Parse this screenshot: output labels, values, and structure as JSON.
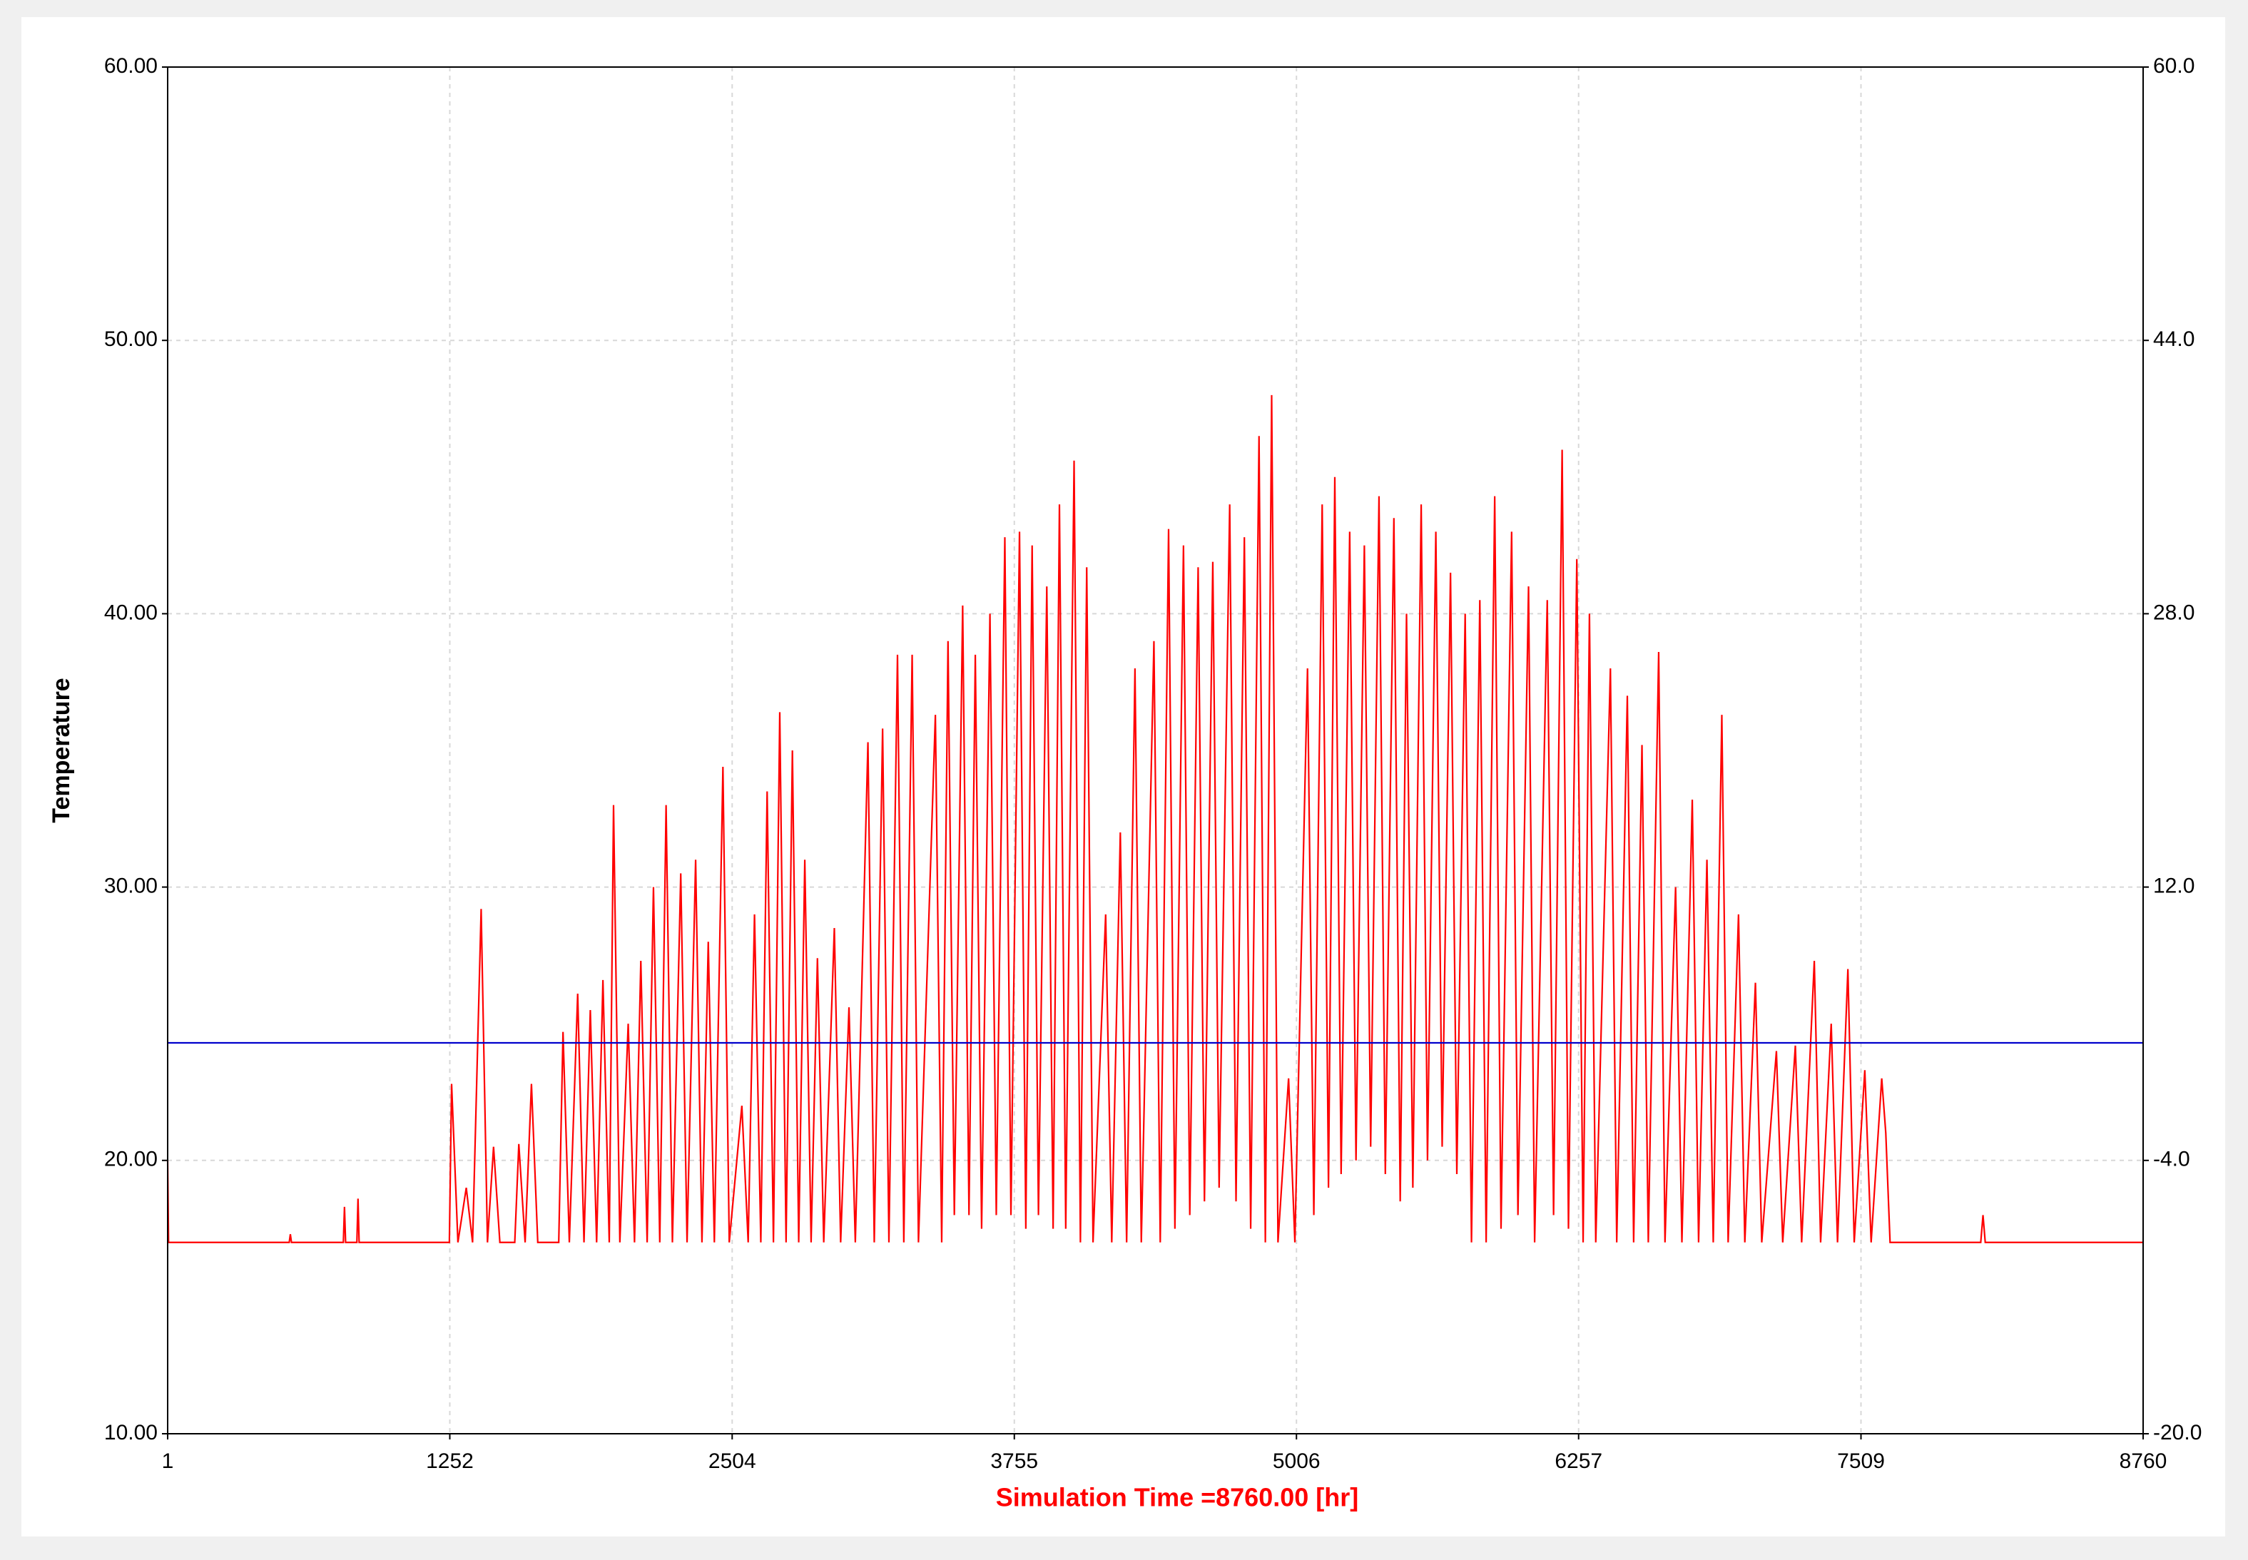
{
  "chart_data": {
    "type": "line",
    "y_label": "Temperature",
    "x_label": "Simulation Time =8760.00 [hr]",
    "x_label_color": "#ff0000",
    "grid": true,
    "xlim": [
      1,
      8760
    ],
    "xticks": [
      1,
      1252,
      2504,
      3755,
      5006,
      6257,
      7509,
      8760
    ],
    "ylim": [
      10,
      60
    ],
    "yticks": [
      {
        "value": 10,
        "label": "10.00"
      },
      {
        "value": 20,
        "label": "20.00"
      },
      {
        "value": 30,
        "label": "30.00"
      },
      {
        "value": 40,
        "label": "40.00"
      },
      {
        "value": 50,
        "label": "50.00"
      },
      {
        "value": 60,
        "label": "60.00"
      }
    ],
    "y2lim": [
      -20,
      60
    ],
    "y2ticks": [
      {
        "value": -20,
        "label": "-20.0"
      },
      {
        "value": -4,
        "label": "-4.0"
      },
      {
        "value": 12,
        "label": "12.0"
      },
      {
        "value": 28,
        "label": "28.0"
      },
      {
        "value": 44,
        "label": "44.0"
      },
      {
        "value": 60,
        "label": "60.0"
      }
    ],
    "series": [
      {
        "color": "#ff0000",
        "x": [
          1,
          5,
          540,
          545,
          550,
          780,
          785,
          790,
          840,
          845,
          850,
          1250,
          1260,
          1288,
          1325,
          1353,
          1391,
          1419,
          1446,
          1474,
          1540,
          1558,
          1586,
          1614,
          1642,
          1735,
          1754,
          1782,
          1819,
          1847,
          1875,
          1903,
          1931,
          1959,
          1978,
          2006,
          2043,
          2071,
          2099,
          2127,
          2155,
          2183,
          2211,
          2239,
          2276,
          2304,
          2342,
          2370,
          2398,
          2425,
          2463,
          2491,
          2547,
          2575,
          2603,
          2631,
          2659,
          2687,
          2715,
          2743,
          2771,
          2799,
          2826,
          2854,
          2882,
          2910,
          2957,
          2985,
          3022,
          3050,
          3106,
          3134,
          3171,
          3199,
          3237,
          3265,
          3302,
          3330,
          3405,
          3433,
          3461,
          3489,
          3526,
          3554,
          3582,
          3610,
          3647,
          3675,
          3713,
          3740,
          3778,
          3806,
          3834,
          3862,
          3899,
          3927,
          3955,
          3983,
          4020,
          4048,
          4076,
          4104,
          4160,
          4187,
          4225,
          4253,
          4290,
          4318,
          4374,
          4402,
          4439,
          4467,
          4505,
          4533,
          4570,
          4598,
          4635,
          4663,
          4710,
          4738,
          4775,
          4803,
          4840,
          4868,
          4896,
          4924,
          4971,
          4999,
          5055,
          5083,
          5120,
          5148,
          5176,
          5204,
          5242,
          5270,
          5307,
          5335,
          5372,
          5400,
          5438,
          5466,
          5494,
          5522,
          5559,
          5587,
          5624,
          5652,
          5689,
          5717,
          5754,
          5782,
          5819,
          5847,
          5885,
          5913,
          5960,
          5988,
          6035,
          6062,
          6118,
          6146,
          6184,
          6212,
          6249,
          6277,
          6305,
          6333,
          6398,
          6426,
          6473,
          6501,
          6538,
          6566,
          6612,
          6640,
          6687,
          6715,
          6761,
          6789,
          6826,
          6854,
          6892,
          6920,
          6966,
          6994,
          7041,
          7069,
          7134,
          7162,
          7218,
          7246,
          7302,
          7330,
          7377,
          7405,
          7451,
          7479,
          7526,
          7554,
          7601,
          7619,
          7638,
          8040,
          8050,
          8060,
          8760
        ],
        "values": [
          20,
          17,
          17,
          17.3,
          17,
          17,
          18.3,
          17,
          17,
          18.6,
          17,
          17,
          22.8,
          17,
          19,
          17,
          29.2,
          17,
          20.5,
          17,
          17,
          20.6,
          17,
          22.8,
          17,
          17,
          24.7,
          17,
          26.1,
          17,
          25.5,
          17,
          26.6,
          17,
          33,
          17,
          25,
          17,
          27.3,
          17,
          30,
          17,
          33,
          17,
          30.5,
          17,
          31,
          17,
          28,
          17,
          34.4,
          17,
          22,
          17,
          29,
          17,
          33.5,
          17,
          36.4,
          17,
          35,
          17,
          31,
          17,
          27.4,
          17,
          28.5,
          17,
          25.6,
          17,
          35.3,
          17,
          35.8,
          17,
          38.5,
          17,
          38.5,
          17,
          36.3,
          17,
          39,
          18,
          40.3,
          18,
          38.5,
          17.5,
          40,
          18,
          42.8,
          18,
          43,
          17.5,
          42.5,
          18,
          41,
          17.5,
          44,
          17.5,
          45.6,
          17,
          41.7,
          17,
          29,
          17,
          32,
          17,
          38,
          17,
          39,
          17,
          43.1,
          17.5,
          42.5,
          18,
          41.7,
          18.5,
          41.9,
          19,
          44,
          18.5,
          42.8,
          17.5,
          46.5,
          17,
          48,
          17,
          23,
          17,
          38,
          18,
          44,
          19,
          45,
          19.5,
          43,
          20,
          42.5,
          20.5,
          44.3,
          19.5,
          43.5,
          18.5,
          40,
          19,
          44,
          20,
          43,
          20.5,
          41.5,
          19.5,
          40,
          17,
          40.5,
          17,
          44.3,
          17.5,
          43,
          18,
          41,
          17,
          40.5,
          18,
          46,
          17.5,
          42,
          17,
          40,
          17,
          38,
          17,
          37,
          17,
          35.2,
          17,
          38.6,
          17,
          30,
          17,
          33.2,
          17,
          31,
          17,
          36.3,
          17,
          29,
          17,
          26.5,
          17,
          24,
          17,
          24.2,
          17,
          27.3,
          17,
          25,
          17,
          27,
          17,
          23.3,
          17,
          23,
          21,
          17,
          17,
          18,
          17,
          17
        ]
      },
      {
        "color": "#0000cc",
        "x": [
          1,
          8760
        ],
        "values": [
          24.3,
          24.3
        ]
      }
    ]
  }
}
